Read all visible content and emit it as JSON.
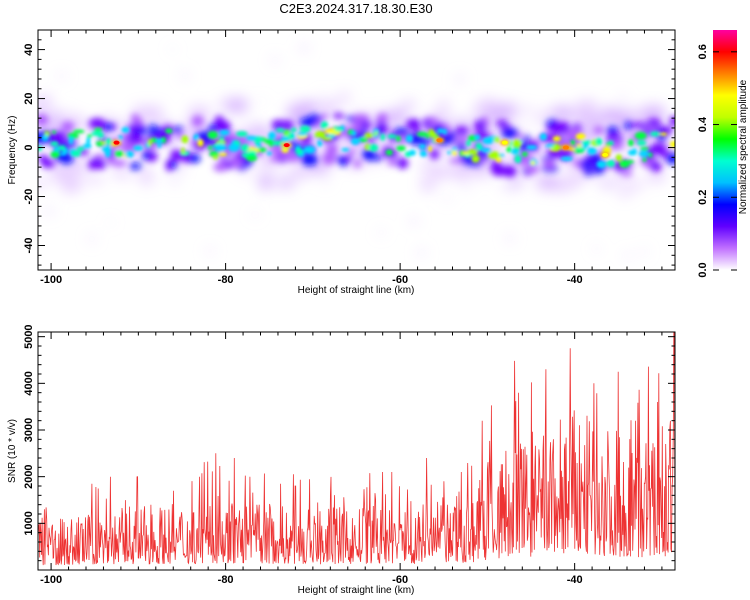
{
  "title": "C2E3.2024.317.18.30.E30",
  "chart_data": [
    {
      "type": "heatmap",
      "xlabel": "Height of straight line (km)",
      "ylabel": "Frequency (Hz)",
      "xlim": [
        -101.5,
        -28.5
      ],
      "ylim": [
        -50,
        48
      ],
      "x_ticks": [
        -100,
        -80,
        -60,
        -40
      ],
      "y_ticks": [
        -40,
        -20,
        0,
        20,
        40
      ],
      "grid": false,
      "colorbar": {
        "label": "Normalized spectral amplitude",
        "range": [
          0,
          0.66
        ],
        "ticks": [
          0.0,
          0.2,
          0.4,
          0.6
        ],
        "tick_labels": [
          "0.0",
          "0.2",
          "0.4",
          "0.6"
        ],
        "colors": [
          "#ffffff",
          "#c070ff",
          "#6000ff",
          "#0000ff",
          "#00c0ff",
          "#00ffd0",
          "#00ff00",
          "#c0ff00",
          "#ffff00",
          "#ff8000",
          "#ff0000",
          "#ff00a0"
        ]
      },
      "band_center": [
        [
          -101,
          2
        ],
        [
          -96,
          2
        ],
        [
          -92,
          2
        ],
        [
          -88,
          2
        ],
        [
          -84,
          1
        ],
        [
          -80,
          1
        ],
        [
          -76,
          0
        ],
        [
          -72,
          3
        ],
        [
          -68,
          4
        ],
        [
          -64,
          3
        ],
        [
          -60,
          2
        ],
        [
          -56,
          2
        ],
        [
          -52,
          1
        ],
        [
          -48,
          0
        ],
        [
          -44,
          -1
        ],
        [
          -40,
          0
        ],
        [
          -36,
          -2
        ],
        [
          -32,
          0
        ],
        [
          -29,
          1
        ]
      ],
      "hotspots": [
        {
          "x": -92.5,
          "y": 2,
          "value": 0.62
        },
        {
          "x": -73,
          "y": 1,
          "value": 0.6
        },
        {
          "x": -55.5,
          "y": 3,
          "value": 0.55
        },
        {
          "x": -48,
          "y": 2,
          "value": 0.5
        },
        {
          "x": -41,
          "y": 0,
          "value": 0.55
        },
        {
          "x": -36.5,
          "y": -3,
          "value": 0.5
        }
      ]
    },
    {
      "type": "line",
      "xlabel": "Height of straight line (km)",
      "ylabel": "SNR (10 * v/v)",
      "xlim": [
        -101.5,
        -28.5
      ],
      "ylim": [
        0,
        5100
      ],
      "x_ticks": [
        -100,
        -80,
        -60,
        -40
      ],
      "y_ticks": [
        1000,
        2000,
        3000,
        4000,
        5000
      ],
      "grid": false,
      "series": [
        {
          "color": "#ee3333",
          "envelope": [
            [
              -101.5,
              700
            ],
            [
              -98,
              700
            ],
            [
              -95,
              800
            ],
            [
              -90,
              850
            ],
            [
              -85,
              900
            ],
            [
              -80,
              950
            ],
            [
              -75,
              900
            ],
            [
              -70,
              800
            ],
            [
              -65,
              850
            ],
            [
              -60,
              850
            ],
            [
              -55,
              950
            ],
            [
              -52,
              1000
            ],
            [
              -50,
              1400
            ],
            [
              -47,
              1800
            ],
            [
              -44,
              1900
            ],
            [
              -41,
              2200
            ],
            [
              -38,
              2100
            ],
            [
              -35,
              1900
            ],
            [
              -32,
              1800
            ],
            [
              -29,
              2000
            ],
            [
              -28.5,
              2200
            ]
          ],
          "peaks": [
            [
              -100.8,
              1300
            ],
            [
              -95.3,
              1850
            ],
            [
              -93.2,
              2000
            ],
            [
              -90.1,
              2000
            ],
            [
              -86,
              1700
            ],
            [
              -83,
              2000
            ],
            [
              -81.1,
              2500
            ],
            [
              -79,
              2400
            ],
            [
              -72,
              1800
            ],
            [
              -68,
              1600
            ],
            [
              -62,
              2100
            ],
            [
              -57,
              2400
            ],
            [
              -55,
              1900
            ],
            [
              -53,
              2100
            ],
            [
              -50.6,
              3200
            ],
            [
              -46.4,
              3800
            ],
            [
              -43.3,
              4300
            ],
            [
              -40.5,
              4750
            ],
            [
              -37.8,
              4000
            ],
            [
              -35,
              4250
            ],
            [
              -33,
              3200
            ],
            [
              -30.5,
              3600
            ],
            [
              -28.6,
              5100
            ]
          ]
        }
      ]
    }
  ]
}
